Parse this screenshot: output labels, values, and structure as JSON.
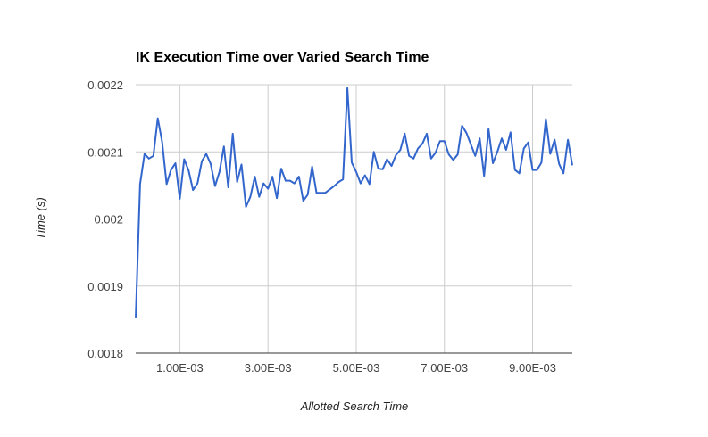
{
  "chart_data": {
    "type": "line",
    "title": "IK Execution Time over Varied Search Time",
    "xlabel": "Allotted Search Time",
    "ylabel": "Time (s)",
    "xlim": [
      0.0,
      0.0099
    ],
    "ylim": [
      0.0018,
      0.0022
    ],
    "x_ticks": [
      0.001,
      0.003,
      0.005,
      0.007,
      0.009
    ],
    "x_tick_labels": [
      "1.00E-03",
      "3.00E-03",
      "5.00E-03",
      "7.00E-03",
      "9.00E-03"
    ],
    "y_ticks": [
      0.0018,
      0.0019,
      0.002,
      0.0021,
      0.0022
    ],
    "y_tick_labels": [
      "0.0018",
      "0.0019",
      "0.002",
      "0.0021",
      "0.0022"
    ],
    "grid": true,
    "legend": "none",
    "colors": {
      "series": "#3366cc",
      "grid": "#cccccc",
      "axis": "#333333"
    },
    "series": [
      {
        "x": [
          0.0,
          0.0001,
          0.0002,
          0.0003,
          0.0004,
          0.0005,
          0.0006,
          0.0007,
          0.0008,
          0.0009,
          0.001,
          0.0011,
          0.0012,
          0.0013,
          0.0014,
          0.0015,
          0.0016,
          0.0017,
          0.0018,
          0.0019,
          0.002,
          0.0021,
          0.0022,
          0.0023,
          0.0024,
          0.0025,
          0.0026,
          0.0027,
          0.0028,
          0.0029,
          0.003,
          0.0031,
          0.0032,
          0.0033,
          0.0034,
          0.0035,
          0.0036,
          0.0037,
          0.0038,
          0.0039,
          0.004,
          0.0041,
          0.0042,
          0.0043,
          0.0044,
          0.0045,
          0.0046,
          0.0047,
          0.0048,
          0.0049,
          0.005,
          0.0051,
          0.0052,
          0.0053,
          0.0054,
          0.0055,
          0.0056,
          0.0057,
          0.0058,
          0.0059,
          0.006,
          0.0061,
          0.0062,
          0.0063,
          0.0064,
          0.0065,
          0.0066,
          0.0067,
          0.0068,
          0.0069,
          0.007,
          0.0071,
          0.0072,
          0.0073,
          0.0074,
          0.0075,
          0.0076,
          0.0077,
          0.0078,
          0.0079,
          0.008,
          0.0081,
          0.0082,
          0.0083,
          0.0084,
          0.0085,
          0.0086,
          0.0087,
          0.0088,
          0.0089,
          0.009,
          0.0091,
          0.0092,
          0.0093,
          0.0094,
          0.0095,
          0.0096,
          0.0097,
          0.0098,
          0.0099
        ],
        "values": [
          0.001852,
          0.002052,
          0.002097,
          0.00209,
          0.002094,
          0.00215,
          0.002115,
          0.002052,
          0.002073,
          0.002083,
          0.00203,
          0.002089,
          0.002072,
          0.002043,
          0.002053,
          0.002086,
          0.002097,
          0.002082,
          0.002049,
          0.00207,
          0.002108,
          0.002047,
          0.002127,
          0.002055,
          0.002081,
          0.002018,
          0.002033,
          0.002063,
          0.002033,
          0.002053,
          0.002045,
          0.002063,
          0.002031,
          0.002075,
          0.002057,
          0.002057,
          0.002053,
          0.002063,
          0.002027,
          0.002036,
          0.002078,
          0.002039,
          0.002039,
          0.002039,
          0.002044,
          0.002049,
          0.002055,
          0.002059,
          0.002195,
          0.002084,
          0.00207,
          0.002053,
          0.002065,
          0.002052,
          0.0021,
          0.002075,
          0.002074,
          0.002089,
          0.002079,
          0.002095,
          0.002103,
          0.002127,
          0.002094,
          0.00209,
          0.002105,
          0.002112,
          0.002127,
          0.00209,
          0.002099,
          0.002116,
          0.002116,
          0.002096,
          0.002088,
          0.002096,
          0.002139,
          0.002128,
          0.002111,
          0.002094,
          0.00212,
          0.002064,
          0.002134,
          0.002083,
          0.0021,
          0.00212,
          0.002103,
          0.002129,
          0.002073,
          0.002068,
          0.002105,
          0.002114,
          0.002073,
          0.002073,
          0.002084,
          0.002149,
          0.002097,
          0.002118,
          0.002082,
          0.002068,
          0.002118,
          0.00208
        ]
      }
    ]
  }
}
